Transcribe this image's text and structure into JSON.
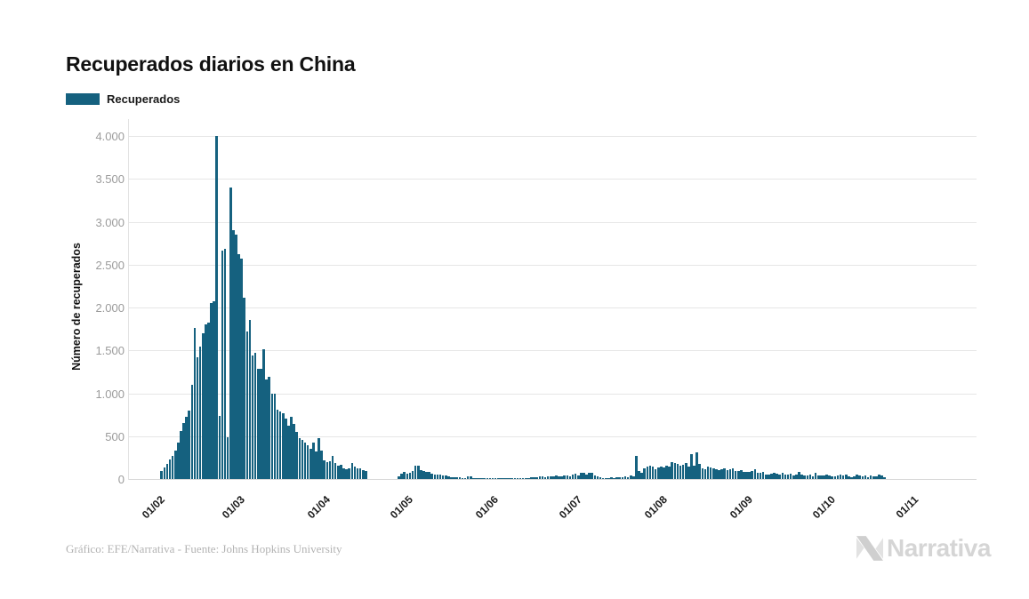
{
  "header": {
    "title": "Recuperados diarios en China"
  },
  "legend": {
    "label": "Recuperados",
    "color": "#15617f"
  },
  "footer": {
    "credit": "Gráfico: EFE/Narrativa - Fuente: Johns Hopkins University",
    "brand": "Narrativa"
  },
  "colors": {
    "bar": "#15617f",
    "grid": "#e6e6e6",
    "tick_text": "#9b9b9b",
    "logo": "#d5d5d5"
  },
  "chart_data": {
    "type": "bar",
    "title": "Recuperados diarios en China",
    "xlabel": "",
    "ylabel": "Número de recuperados",
    "ylim": [
      0,
      4000
    ],
    "grid": "horizontal",
    "legend_position": "top-left",
    "bar_color": "#15617f",
    "yticks": [
      {
        "value": 0,
        "label": "0"
      },
      {
        "value": 500,
        "label": "500"
      },
      {
        "value": 1000,
        "label": "1.000"
      },
      {
        "value": 1500,
        "label": "1.500"
      },
      {
        "value": 2000,
        "label": "2.000"
      },
      {
        "value": 2500,
        "label": "2.500"
      },
      {
        "value": 3000,
        "label": "3.000"
      },
      {
        "value": 3500,
        "label": "3.500"
      },
      {
        "value": 4000,
        "label": "4.000"
      }
    ],
    "xticks": [
      {
        "label": "01/02",
        "day": 0
      },
      {
        "label": "01/03",
        "day": 29
      },
      {
        "label": "01/04",
        "day": 60
      },
      {
        "label": "01/05",
        "day": 90
      },
      {
        "label": "01/06",
        "day": 121
      },
      {
        "label": "01/07",
        "day": 151
      },
      {
        "label": "01/08",
        "day": 182
      },
      {
        "label": "01/09",
        "day": 213
      },
      {
        "label": "01/10",
        "day": 243
      },
      {
        "label": "01/11",
        "day": 273
      }
    ],
    "series": [
      {
        "name": "Recuperados",
        "start_date": "01/02/2020",
        "frequency": "daily",
        "values": [
          90,
          130,
          175,
          230,
          265,
          330,
          430,
          560,
          650,
          730,
          800,
          1100,
          1760,
          1420,
          1540,
          1700,
          1800,
          1825,
          2050,
          2070,
          3995,
          740,
          2660,
          2680,
          490,
          3400,
          2900,
          2850,
          2620,
          2570,
          2110,
          1720,
          1860,
          1440,
          1470,
          1285,
          1290,
          1510,
          1160,
          1190,
          1000,
          990,
          810,
          790,
          770,
          700,
          620,
          730,
          640,
          550,
          480,
          460,
          420,
          390,
          350,
          430,
          320,
          480,
          335,
          215,
          200,
          205,
          270,
          190,
          158,
          170,
          125,
          110,
          125,
          190,
          140,
          125,
          125,
          105,
          90,
          0,
          0,
          0,
          0,
          0,
          0,
          0,
          0,
          0,
          0,
          0,
          30,
          65,
          85,
          58,
          70,
          90,
          155,
          160,
          105,
          95,
          85,
          82,
          60,
          55,
          50,
          48,
          40,
          38,
          30,
          25,
          20,
          25,
          18,
          15,
          12,
          30,
          28,
          15,
          12,
          10,
          12,
          10,
          8,
          10,
          12,
          12,
          10,
          8,
          10,
          12,
          15,
          10,
          8,
          8,
          10,
          14,
          12,
          15,
          20,
          25,
          22,
          28,
          30,
          25,
          35,
          30,
          28,
          40,
          35,
          30,
          45,
          38,
          32,
          48,
          58,
          45,
          75,
          70,
          50,
          70,
          68,
          40,
          30,
          20,
          15,
          12,
          15,
          18,
          15,
          20,
          25,
          20,
          30,
          25,
          45,
          35,
          270,
          90,
          75,
          120,
          145,
          155,
          145,
          115,
          130,
          140,
          130,
          155,
          145,
          200,
          185,
          180,
          160,
          165,
          190,
          145,
          290,
          160,
          310,
          175,
          125,
          115,
          140,
          135,
          125,
          115,
          100,
          115,
          120,
          100,
          110,
          125,
          90,
          95,
          100,
          85,
          80,
          80,
          90,
          110,
          75,
          70,
          80,
          55,
          50,
          60,
          70,
          65,
          50,
          70,
          55,
          50,
          60,
          45,
          55,
          80,
          50,
          45,
          40,
          50,
          35,
          70,
          45,
          40,
          45,
          50,
          40,
          35,
          30,
          45,
          55,
          40,
          50,
          30,
          25,
          35,
          50,
          40,
          30,
          45,
          25,
          40,
          35,
          30,
          50,
          40,
          25
        ]
      }
    ]
  }
}
